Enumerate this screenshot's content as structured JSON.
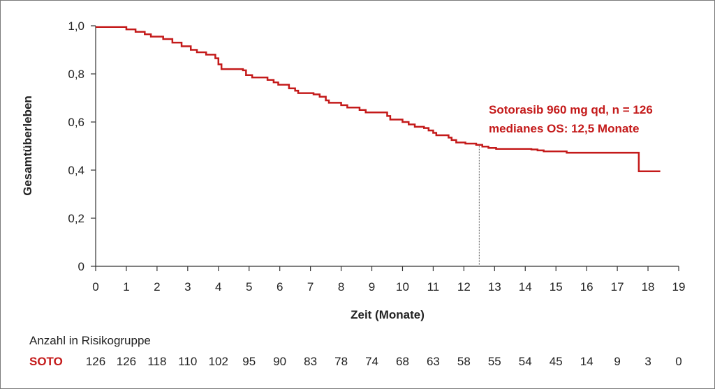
{
  "chart_data": {
    "type": "line",
    "subtype": "kaplan-meier",
    "xlabel": "Zeit (Monate)",
    "ylabel": "Gesamtüberleben",
    "xlim": [
      0,
      19
    ],
    "ylim": [
      0,
      1
    ],
    "x_ticks": [
      0,
      1,
      2,
      3,
      4,
      5,
      6,
      7,
      8,
      9,
      10,
      11,
      12,
      13,
      14,
      15,
      16,
      17,
      18,
      19
    ],
    "y_ticks": [
      "0",
      "0,2",
      "0,4",
      "0,6",
      "0,8",
      "1,0"
    ],
    "y_tick_values": [
      0,
      0.2,
      0.4,
      0.6,
      0.8,
      1.0
    ],
    "grid": false,
    "series": [
      {
        "name": "Sotorasib 960 mg qd, n = 126",
        "color": "#c41a1a",
        "steps": [
          [
            0,
            0.995
          ],
          [
            1.0,
            0.985
          ],
          [
            1.3,
            0.975
          ],
          [
            1.6,
            0.965
          ],
          [
            1.8,
            0.955
          ],
          [
            2.2,
            0.945
          ],
          [
            2.5,
            0.93
          ],
          [
            2.8,
            0.915
          ],
          [
            3.1,
            0.9
          ],
          [
            3.3,
            0.89
          ],
          [
            3.6,
            0.88
          ],
          [
            3.9,
            0.865
          ],
          [
            4.0,
            0.84
          ],
          [
            4.1,
            0.82
          ],
          [
            4.8,
            0.815
          ],
          [
            4.9,
            0.795
          ],
          [
            5.1,
            0.785
          ],
          [
            5.6,
            0.775
          ],
          [
            5.8,
            0.765
          ],
          [
            5.95,
            0.755
          ],
          [
            6.3,
            0.74
          ],
          [
            6.5,
            0.73
          ],
          [
            6.6,
            0.72
          ],
          [
            7.1,
            0.715
          ],
          [
            7.3,
            0.705
          ],
          [
            7.5,
            0.69
          ],
          [
            7.6,
            0.68
          ],
          [
            8.0,
            0.67
          ],
          [
            8.2,
            0.66
          ],
          [
            8.6,
            0.65
          ],
          [
            8.8,
            0.64
          ],
          [
            9.5,
            0.625
          ],
          [
            9.6,
            0.61
          ],
          [
            10.0,
            0.6
          ],
          [
            10.2,
            0.59
          ],
          [
            10.4,
            0.58
          ],
          [
            10.7,
            0.575
          ],
          [
            10.85,
            0.565
          ],
          [
            11.0,
            0.555
          ],
          [
            11.1,
            0.545
          ],
          [
            11.5,
            0.535
          ],
          [
            11.6,
            0.525
          ],
          [
            11.75,
            0.515
          ],
          [
            12.05,
            0.51
          ],
          [
            12.4,
            0.505
          ],
          [
            12.6,
            0.498
          ],
          [
            12.8,
            0.492
          ],
          [
            13.05,
            0.488
          ],
          [
            14.2,
            0.486
          ],
          [
            14.4,
            0.482
          ],
          [
            14.6,
            0.478
          ],
          [
            15.35,
            0.472
          ],
          [
            17.7,
            0.395
          ],
          [
            18.4,
            0.395
          ]
        ]
      }
    ],
    "median": {
      "x": 12.5,
      "y": 0.5
    },
    "annotation": [
      "Sotorasib 960 mg qd, n = 126",
      "medianes OS: 12,5 Monate"
    ],
    "risk_table": {
      "title": "Anzahl in Risikogruppe",
      "label": "SOTO",
      "values": [
        "126",
        "126",
        "118",
        "110",
        "102",
        "95",
        "90",
        "83",
        "78",
        "74",
        "68",
        "63",
        "58",
        "55",
        "54",
        "45",
        "14",
        "9",
        "3",
        "0"
      ]
    }
  }
}
